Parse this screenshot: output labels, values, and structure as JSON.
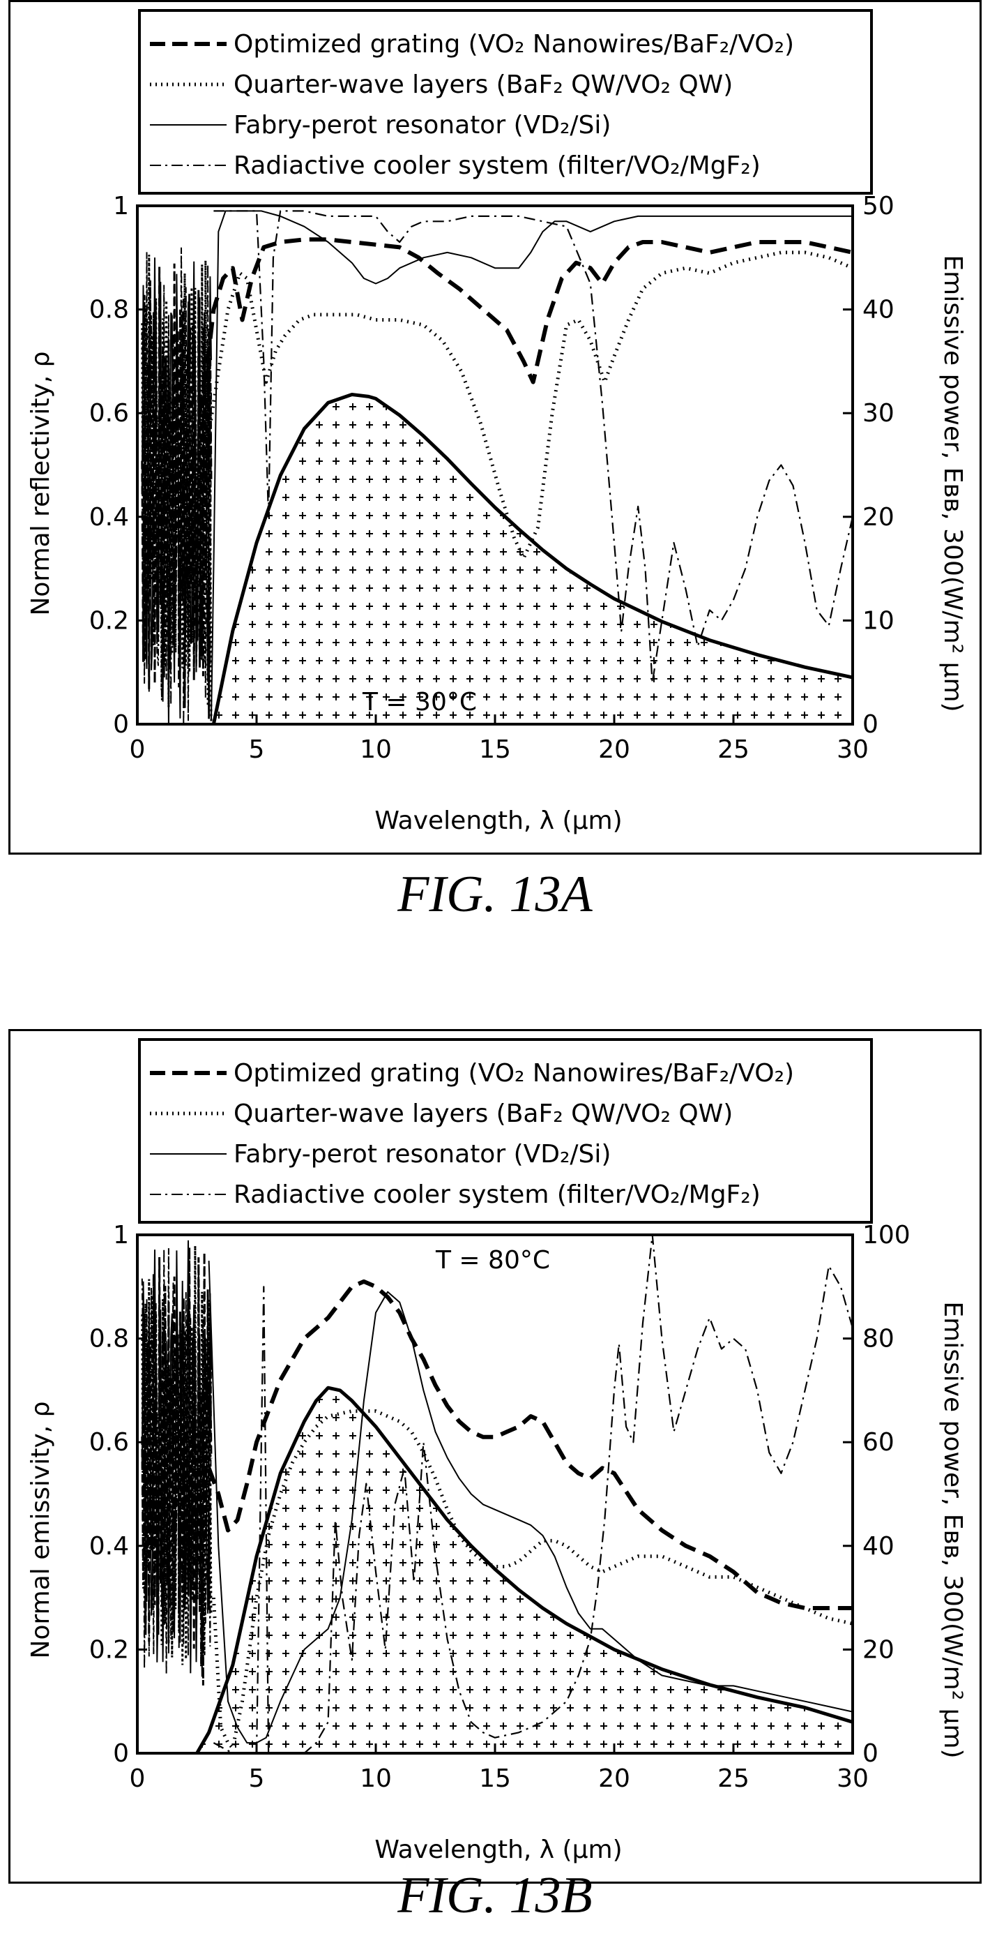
{
  "figures": [
    {
      "caption": "FIG. 13A",
      "temperature_label": "T = 30°C",
      "legend": [
        {
          "text": "Optimized grating (VO₂ Nanowires/BaF₂/VO₂)",
          "style": "dashed-heavy"
        },
        {
          "text": "Quarter-wave layers (BaF₂ QW/VO₂ QW)",
          "style": "dotted"
        },
        {
          "text": "Fabry-perot resonator (VD₂/Si)",
          "style": "solid-thin"
        },
        {
          "text": "Radiactive cooler system (filter/VO₂/MgF₂)",
          "style": "dash-dot"
        }
      ],
      "xlabel": "Wavelength, λ (μm)",
      "ylabel_left": "Normal reflectivity, ρ",
      "ylabel_right": "Emissive power, Eʙʙ, 300(W/m² μm)",
      "x_ticks": [
        "0",
        "5",
        "10",
        "15",
        "20",
        "25",
        "30"
      ],
      "y_left_ticks": [
        "0",
        "0.2",
        "0.4",
        "0.6",
        "0.8",
        "1"
      ],
      "y_right_ticks": [
        "0",
        "10",
        "20",
        "30",
        "40",
        "50"
      ]
    },
    {
      "caption": "FIG. 13B",
      "temperature_label": "T = 80°C",
      "legend": [
        {
          "text": "Optimized grating (VO₂ Nanowires/BaF₂/VO₂)",
          "style": "dashed-heavy"
        },
        {
          "text": "Quarter-wave layers (BaF₂ QW/VO₂ QW)",
          "style": "dotted"
        },
        {
          "text": "Fabry-perot resonator (VD₂/Si)",
          "style": "solid-thin"
        },
        {
          "text": "Radiactive cooler system (filter/VO₂/MgF₂)",
          "style": "dash-dot"
        }
      ],
      "xlabel": "Wavelength, λ (μm)",
      "ylabel_left": "Normal emissivity, ρ",
      "ylabel_right": "Emissive power, Eʙʙ, 300(W/m² μm)",
      "x_ticks": [
        "0",
        "5",
        "10",
        "15",
        "20",
        "25",
        "30"
      ],
      "y_left_ticks": [
        "0",
        "0.2",
        "0.4",
        "0.6",
        "0.8",
        "1"
      ],
      "y_right_ticks": [
        "0",
        "20",
        "40",
        "60",
        "80",
        "100"
      ]
    }
  ],
  "chart_data": [
    {
      "type": "line",
      "title": "",
      "xlabel": "Wavelength, λ (μm)",
      "ylabel": "Normal reflectivity, ρ",
      "y2label": "Emissive power, Eʙʙ, 300(W/m² μm)",
      "xlim": [
        0,
        30
      ],
      "ylim": [
        0,
        1
      ],
      "y2lim": [
        0,
        50
      ],
      "grid": false,
      "legend_position": "top",
      "series": [
        {
          "name": "Optimized grating (VO₂ Nanowires/BaF₂/VO₂)",
          "style": "dashed-heavy",
          "x": [
            2.6,
            3.0,
            3.2,
            3.6,
            4.0,
            4.4,
            4.8,
            5.3,
            6,
            7,
            8,
            9,
            10,
            11,
            11.8,
            12.6,
            13.5,
            14.5,
            15.5,
            16.2,
            16.6,
            17.2,
            17.8,
            18.4,
            19.0,
            19.5,
            20.0,
            20.6,
            21.2,
            22,
            23,
            24,
            25,
            26,
            27,
            28,
            29,
            30
          ],
          "y": [
            0.6,
            0.72,
            0.8,
            0.86,
            0.88,
            0.78,
            0.86,
            0.92,
            0.93,
            0.935,
            0.935,
            0.93,
            0.925,
            0.92,
            0.9,
            0.87,
            0.84,
            0.8,
            0.76,
            0.7,
            0.66,
            0.78,
            0.86,
            0.89,
            0.88,
            0.85,
            0.89,
            0.92,
            0.93,
            0.93,
            0.92,
            0.91,
            0.92,
            0.93,
            0.93,
            0.93,
            0.92,
            0.91
          ]
        },
        {
          "name": "Quarter-wave layers (BaF₂ QW/VO₂ QW)",
          "style": "dotted",
          "x": [
            2.2,
            2.8,
            3.2,
            3.8,
            4.3,
            4.6,
            5.0,
            5.4,
            5.8,
            6.2,
            6.8,
            7.4,
            8,
            8.6,
            9.2,
            10,
            11,
            12,
            12.8,
            13.6,
            14.4,
            15.2,
            15.8,
            16.2,
            16.8,
            17.4,
            18.0,
            18.5,
            19.0,
            19.6,
            20.0,
            20.6,
            21.2,
            22,
            23,
            24,
            25,
            26,
            27,
            28,
            29,
            30
          ],
          "y": [
            0.36,
            0.5,
            0.62,
            0.8,
            0.87,
            0.86,
            0.76,
            0.66,
            0.72,
            0.75,
            0.78,
            0.79,
            0.79,
            0.79,
            0.79,
            0.78,
            0.78,
            0.77,
            0.74,
            0.68,
            0.58,
            0.45,
            0.36,
            0.32,
            0.38,
            0.6,
            0.77,
            0.78,
            0.74,
            0.66,
            0.71,
            0.78,
            0.84,
            0.87,
            0.88,
            0.87,
            0.89,
            0.9,
            0.91,
            0.91,
            0.9,
            0.88
          ]
        },
        {
          "name": "Fabry-perot resonator (VD₂/Si)",
          "style": "solid-thin",
          "x": [
            3.1,
            3.2,
            3.4,
            3.7,
            4.0,
            4.3,
            4.7,
            5.2,
            6,
            7,
            8,
            9,
            9.5,
            10,
            10.5,
            11,
            12,
            13,
            14,
            15,
            16,
            16.5,
            17,
            17.5,
            18,
            18.5,
            19,
            19.5,
            20,
            21,
            22,
            23,
            24,
            25,
            26,
            27,
            28,
            29,
            30
          ],
          "y": [
            0.01,
            0.3,
            0.95,
            0.99,
            0.99,
            0.99,
            0.99,
            0.99,
            0.98,
            0.96,
            0.93,
            0.89,
            0.86,
            0.85,
            0.86,
            0.88,
            0.9,
            0.91,
            0.9,
            0.88,
            0.88,
            0.91,
            0.95,
            0.97,
            0.97,
            0.96,
            0.95,
            0.96,
            0.97,
            0.98,
            0.98,
            0.98,
            0.98,
            0.98,
            0.98,
            0.98,
            0.98,
            0.98,
            0.98
          ]
        },
        {
          "name": "Radiactive cooler system (filter/VO₂/MgF₂)",
          "style": "dash-dot",
          "x": [
            3.2,
            3.6,
            4.0,
            4.5,
            5.0,
            5.3,
            5.5,
            5.7,
            6,
            7,
            8,
            9,
            10,
            10.5,
            11,
            11.5,
            12,
            13,
            14,
            15,
            16,
            17,
            18,
            19,
            19.5,
            20,
            20.3,
            20.6,
            21,
            21.3,
            21.6,
            22,
            22.5,
            23,
            23.5,
            24,
            24.5,
            25,
            25.5,
            26,
            26.5,
            27,
            27.5,
            28,
            28.5,
            29,
            29.5,
            30
          ],
          "y": [
            0.99,
            0.99,
            0.99,
            0.99,
            0.99,
            0.7,
            0.4,
            0.9,
            0.99,
            0.99,
            0.98,
            0.98,
            0.98,
            0.95,
            0.93,
            0.96,
            0.97,
            0.97,
            0.98,
            0.98,
            0.98,
            0.97,
            0.96,
            0.85,
            0.62,
            0.35,
            0.18,
            0.3,
            0.42,
            0.3,
            0.08,
            0.2,
            0.35,
            0.26,
            0.15,
            0.22,
            0.2,
            0.24,
            0.3,
            0.4,
            0.47,
            0.5,
            0.46,
            0.35,
            0.22,
            0.19,
            0.3,
            0.4
          ]
        },
        {
          "name": "",
          "style": "blackbody-filled",
          "axis": "right",
          "x": [
            3.2,
            4,
            5,
            6,
            7,
            8,
            9,
            9.7,
            10,
            11,
            12,
            13,
            14,
            15,
            16,
            17,
            18,
            19,
            20,
            22,
            24,
            26,
            28,
            30
          ],
          "y": [
            0,
            9,
            17.5,
            24,
            28.5,
            31,
            31.8,
            31.6,
            31.4,
            29.8,
            27.8,
            25.6,
            23.2,
            20.9,
            18.8,
            16.8,
            15.0,
            13.5,
            12.1,
            9.9,
            8.1,
            6.7,
            5.5,
            4.5
          ]
        }
      ]
    },
    {
      "type": "line",
      "title": "",
      "xlabel": "Wavelength, λ (μm)",
      "ylabel": "Normal emissivity, ρ",
      "y2label": "Emissive power, Eʙʙ, 300(W/m² μm)",
      "xlim": [
        0,
        30
      ],
      "ylim": [
        0,
        1
      ],
      "y2lim": [
        0,
        100
      ],
      "grid": false,
      "legend_position": "top",
      "series": [
        {
          "name": "Optimized grating (VO₂ Nanowires/BaF₂/VO₂)",
          "style": "dashed-heavy",
          "x": [
            3.0,
            3.4,
            3.8,
            4.2,
            4.6,
            5,
            5.5,
            6,
            6.5,
            7,
            7.5,
            8,
            8.5,
            9,
            9.5,
            10,
            10.5,
            11,
            11.5,
            12,
            12.5,
            13,
            13.5,
            14,
            14.5,
            15,
            15.5,
            16,
            16.5,
            17,
            17.5,
            18,
            18.5,
            19,
            19.5,
            20,
            21,
            22,
            23,
            24,
            25,
            26,
            27,
            28,
            29,
            30
          ],
          "y": [
            0.55,
            0.5,
            0.43,
            0.45,
            0.52,
            0.6,
            0.66,
            0.72,
            0.76,
            0.8,
            0.82,
            0.84,
            0.87,
            0.9,
            0.91,
            0.9,
            0.88,
            0.85,
            0.8,
            0.76,
            0.71,
            0.67,
            0.64,
            0.62,
            0.61,
            0.61,
            0.62,
            0.63,
            0.65,
            0.64,
            0.6,
            0.56,
            0.54,
            0.53,
            0.55,
            0.54,
            0.47,
            0.43,
            0.4,
            0.38,
            0.35,
            0.31,
            0.29,
            0.28,
            0.28,
            0.28
          ]
        },
        {
          "name": "Quarter-wave layers (BaF₂ QW/VO₂ QW)",
          "style": "dotted",
          "x": [
            3.2,
            3.5,
            3.8,
            4.0,
            4.4,
            5,
            5.5,
            6,
            6.5,
            7,
            7.5,
            8,
            9,
            10,
            11,
            11.5,
            12,
            12.5,
            13,
            13.5,
            14,
            14.5,
            15,
            15.5,
            16,
            16.5,
            17,
            17.5,
            18,
            18.5,
            19,
            19.5,
            20,
            21,
            22,
            23,
            24,
            25,
            26,
            27,
            28,
            29,
            30
          ],
          "y": [
            0.3,
            0.05,
            0.02,
            0.01,
            0.1,
            0.3,
            0.42,
            0.5,
            0.56,
            0.6,
            0.63,
            0.65,
            0.66,
            0.66,
            0.64,
            0.62,
            0.58,
            0.53,
            0.47,
            0.42,
            0.39,
            0.37,
            0.36,
            0.36,
            0.37,
            0.39,
            0.41,
            0.41,
            0.4,
            0.38,
            0.36,
            0.35,
            0.36,
            0.38,
            0.38,
            0.36,
            0.34,
            0.34,
            0.32,
            0.3,
            0.28,
            0.26,
            0.25
          ]
        },
        {
          "name": "Fabry-perot resonator (VD₂/Si)",
          "style": "solid-thin",
          "x": [
            3.0,
            3.4,
            3.8,
            4.2,
            4.6,
            5,
            5.4,
            6,
            6.5,
            7,
            7.5,
            8,
            8.5,
            9,
            9.5,
            10,
            10.5,
            11,
            11.5,
            12,
            12.5,
            13,
            13.5,
            14,
            14.5,
            15,
            15.5,
            16,
            16.5,
            17,
            17.5,
            18,
            18.5,
            19,
            19.5,
            20,
            21,
            22,
            23,
            24,
            25,
            26,
            27,
            28,
            29,
            30
          ],
          "y": [
            0.95,
            0.4,
            0.1,
            0.05,
            0.02,
            0.02,
            0.03,
            0.1,
            0.15,
            0.2,
            0.22,
            0.24,
            0.3,
            0.45,
            0.68,
            0.85,
            0.89,
            0.87,
            0.8,
            0.7,
            0.62,
            0.57,
            0.53,
            0.5,
            0.48,
            0.47,
            0.46,
            0.45,
            0.44,
            0.42,
            0.38,
            0.32,
            0.27,
            0.24,
            0.24,
            0.22,
            0.18,
            0.15,
            0.14,
            0.13,
            0.13,
            0.12,
            0.11,
            0.1,
            0.09,
            0.08
          ]
        },
        {
          "name": "Radiactive cooler system (filter/VO₂/MgF₂)",
          "style": "dash-dot",
          "x": [
            3.2,
            4,
            5,
            5.3,
            5.5,
            6,
            7,
            7.5,
            8,
            8.3,
            8.6,
            9,
            9.3,
            9.6,
            10,
            10.4,
            10.8,
            11.2,
            11.6,
            12,
            12.5,
            13,
            13.5,
            14,
            14.5,
            15,
            16,
            17,
            18,
            18.5,
            19,
            19.3,
            19.6,
            20,
            20.2,
            20.5,
            20.8,
            21.2,
            21.6,
            22,
            22.5,
            23,
            23.5,
            24,
            24.5,
            25,
            25.5,
            26,
            26.5,
            27,
            27.5,
            28,
            28.5,
            29,
            29.5,
            30
          ],
          "y": [
            0.02,
            0.0,
            0.0,
            0.9,
            0.0,
            0.0,
            0.0,
            0.02,
            0.06,
            0.45,
            0.3,
            0.18,
            0.42,
            0.52,
            0.35,
            0.2,
            0.48,
            0.55,
            0.33,
            0.6,
            0.38,
            0.22,
            0.12,
            0.06,
            0.04,
            0.03,
            0.04,
            0.06,
            0.1,
            0.15,
            0.22,
            0.32,
            0.45,
            0.7,
            0.79,
            0.63,
            0.6,
            0.83,
            1.0,
            0.8,
            0.62,
            0.7,
            0.78,
            0.84,
            0.78,
            0.8,
            0.78,
            0.7,
            0.58,
            0.54,
            0.6,
            0.7,
            0.8,
            0.94,
            0.9,
            0.82
          ]
        },
        {
          "name": "",
          "style": "blackbody-filled",
          "axis": "right",
          "x": [
            2.5,
            3,
            4,
            5,
            6,
            7,
            7.5,
            8,
            8.5,
            9,
            10,
            11,
            12,
            13,
            14,
            15,
            16,
            17,
            18,
            19,
            20,
            22,
            24,
            26,
            28,
            30
          ],
          "y": [
            0,
            4,
            17,
            38,
            54,
            64,
            68,
            70.5,
            70,
            68,
            63,
            57,
            51,
            45,
            40,
            35.5,
            31.5,
            28,
            25,
            22.5,
            20,
            16.2,
            13.2,
            10.8,
            8.8,
            6.0
          ]
        }
      ]
    }
  ]
}
